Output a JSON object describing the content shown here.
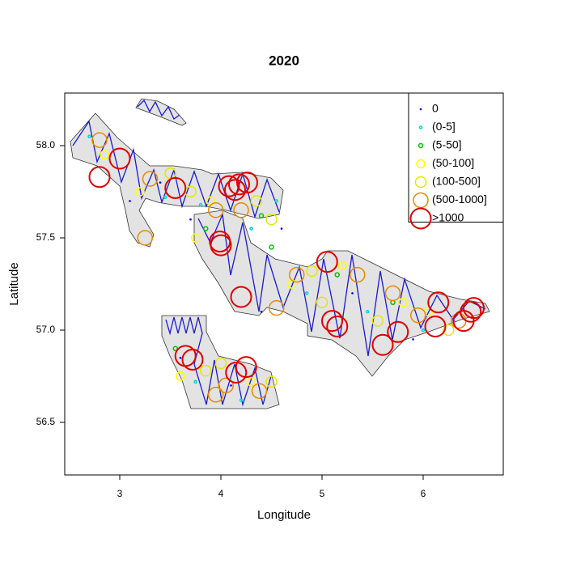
{
  "chart_data": {
    "type": "scatter",
    "title": "2020",
    "x_label": "Longitude",
    "y_label": "Latitude",
    "xlim": [
      2.456,
      6.792
    ],
    "ylim": [
      56.215,
      58.285
    ],
    "xticks": [
      3,
      4,
      5,
      6
    ],
    "yticks": [
      {
        "value": 56.5,
        "label": "56.5"
      },
      {
        "value": 57,
        "label": "57.0"
      },
      {
        "value": 57.5,
        "label": "57.5"
      },
      {
        "value": 58,
        "label": "58.0"
      }
    ],
    "legend": "top-right",
    "series": [
      {
        "name": "0",
        "color": "#0000ff",
        "x": [
          3.1,
          3.4,
          3.7,
          4.6,
          5.3,
          5.9,
          6.3,
          3.6,
          4.1,
          4.4
        ],
        "y": [
          57.7,
          57.8,
          57.6,
          57.55,
          57.2,
          56.95,
          57.05,
          56.85,
          56.7,
          57.1
        ]
      },
      {
        "name": "(0-5]",
        "color": "#00d8d8",
        "x": [
          3.45,
          3.8,
          4.3,
          4.55,
          4.85,
          5.45,
          6.0,
          3.75,
          4.2,
          2.7
        ],
        "y": [
          57.72,
          57.68,
          57.55,
          57.7,
          57.2,
          57.1,
          57.0,
          56.72,
          56.62,
          58.05
        ]
      },
      {
        "name": "(5-50]",
        "color": "#00c000",
        "x": [
          3.85,
          4.4,
          5.15,
          5.7,
          3.55,
          4.5
        ],
        "y": [
          57.55,
          57.62,
          57.3,
          57.15,
          56.9,
          57.45
        ]
      },
      {
        "name": "(50-100]",
        "color": "#ffff00",
        "x": [
          3.2,
          3.9,
          3.75,
          4.7,
          5.2,
          5.8,
          6.05,
          3.6,
          4.3,
          2.85
        ],
        "y": [
          57.75,
          57.7,
          57.5,
          57.25,
          57.35,
          57.15,
          57.1,
          56.75,
          56.72,
          57.95
        ]
      },
      {
        "name": "(100-500]",
        "color": "#e6e600",
        "x": [
          3.5,
          3.7,
          4.35,
          4.5,
          4.9,
          5.0,
          5.55,
          6.25,
          3.85,
          4.0,
          4.5
        ],
        "y": [
          57.85,
          57.75,
          57.7,
          57.6,
          57.32,
          57.15,
          57.05,
          57.0,
          56.78,
          56.82,
          56.72
        ]
      },
      {
        "name": "(500-1000]",
        "color": "#e68a00",
        "x": [
          2.8,
          3.25,
          3.3,
          3.95,
          4.2,
          4.55,
          5.35,
          5.95,
          6.35,
          4.05,
          3.95,
          4.38,
          4.75,
          5.7
        ],
        "y": [
          58.03,
          57.5,
          57.82,
          57.65,
          57.65,
          57.12,
          57.3,
          57.08,
          57.05,
          56.7,
          56.65,
          56.67,
          57.3,
          57.2
        ]
      },
      {
        "name": ">1000",
        "color": "#e00000",
        "x": [
          3.0,
          2.8,
          4.08,
          4.14,
          4.26,
          4.18,
          4.0,
          3.99,
          4.2,
          5.05,
          5.15,
          5.1,
          5.75,
          5.6,
          6.5,
          6.47,
          6.4,
          6.15,
          6.12,
          3.65,
          3.72,
          4.25,
          4.15,
          3.55
        ],
        "y": [
          57.93,
          57.83,
          57.78,
          57.76,
          57.8,
          57.79,
          57.46,
          57.48,
          57.18,
          57.37,
          57.02,
          57.05,
          56.99,
          56.92,
          57.12,
          57.1,
          57.05,
          57.15,
          57.02,
          56.86,
          56.84,
          56.8,
          56.77,
          57.77
        ]
      }
    ]
  }
}
